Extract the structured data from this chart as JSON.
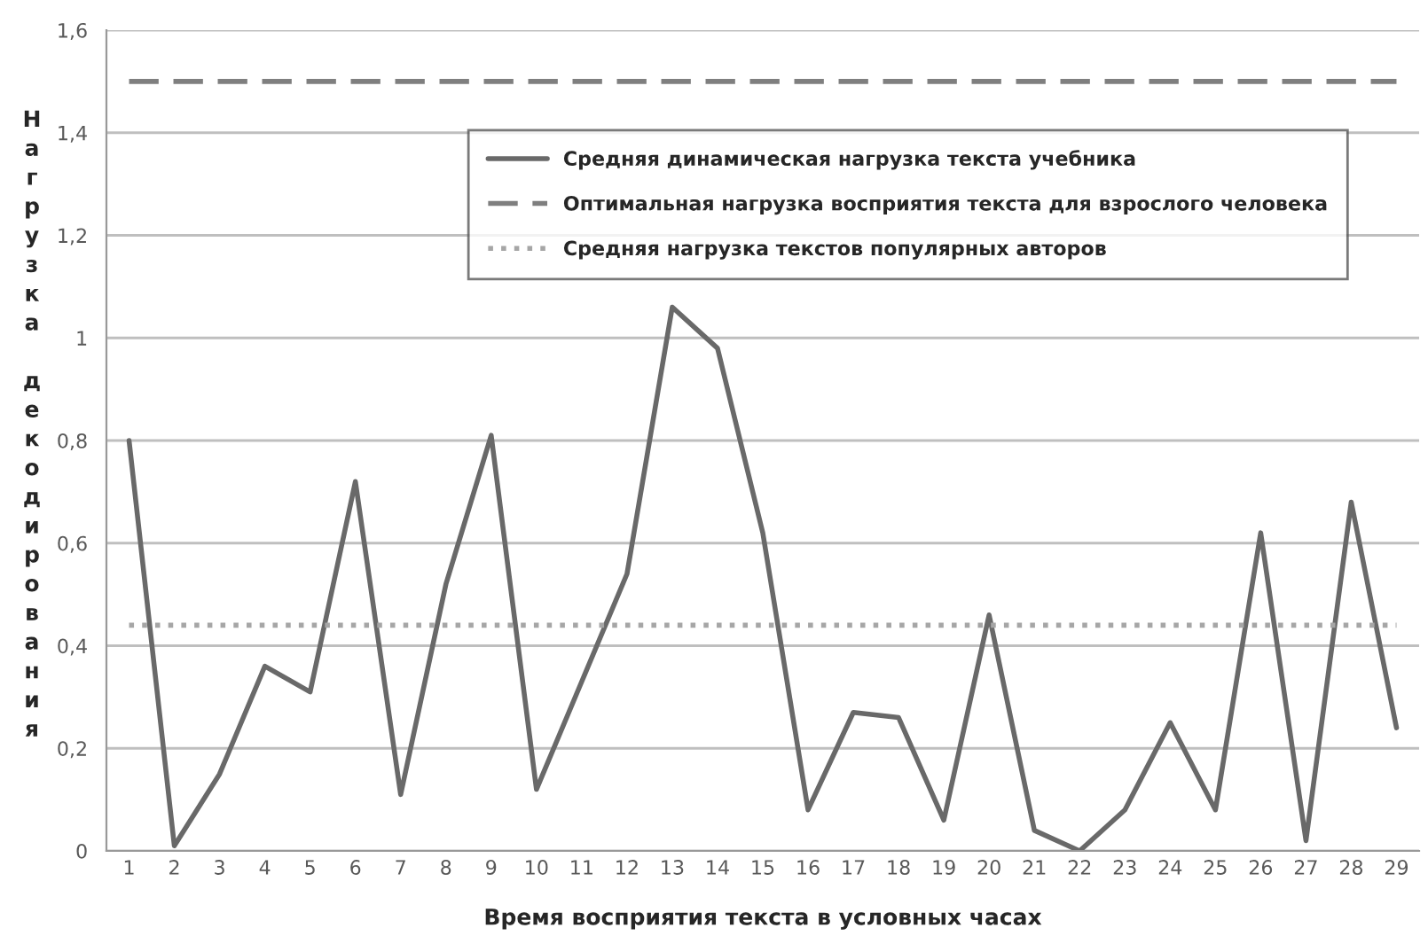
{
  "chart_data": {
    "type": "line",
    "xlabel": "Время восприятия текста в условных часах",
    "ylabel": "Нагрузка декодирования",
    "categories": [
      "1",
      "2",
      "3",
      "4",
      "5",
      "6",
      "7",
      "8",
      "9",
      "10",
      "11",
      "12",
      "13",
      "14",
      "15",
      "16",
      "17",
      "18",
      "19",
      "20",
      "21",
      "22",
      "23",
      "24",
      "25",
      "26",
      "27",
      "28",
      "29"
    ],
    "series": [
      {
        "name": "Средняя динамическая нагрузка текста учебника",
        "color": "#696969",
        "line_style": "solid",
        "values": [
          0.8,
          0.01,
          0.15,
          0.36,
          0.31,
          0.72,
          0.11,
          0.52,
          0.81,
          0.12,
          0.33,
          0.54,
          1.06,
          0.98,
          0.62,
          0.08,
          0.27,
          0.26,
          0.06,
          0.46,
          0.04,
          0.0,
          0.08,
          0.25,
          0.08,
          0.62,
          0.02,
          0.68,
          0.24
        ]
      },
      {
        "name": "Оптимальная нагрузка восприятия текста для взрослого человека",
        "color": "#7f7f7f",
        "line_style": "dashed",
        "values": [
          1.5,
          1.5,
          1.5,
          1.5,
          1.5,
          1.5,
          1.5,
          1.5,
          1.5,
          1.5,
          1.5,
          1.5,
          1.5,
          1.5,
          1.5,
          1.5,
          1.5,
          1.5,
          1.5,
          1.5,
          1.5,
          1.5,
          1.5,
          1.5,
          1.5,
          1.5,
          1.5,
          1.5,
          1.5
        ]
      },
      {
        "name": "Средняя нагрузка текстов популярных авторов",
        "color": "#a6a6a6",
        "line_style": "dotted",
        "values": [
          0.44,
          0.44,
          0.44,
          0.44,
          0.44,
          0.44,
          0.44,
          0.44,
          0.44,
          0.44,
          0.44,
          0.44,
          0.44,
          0.44,
          0.44,
          0.44,
          0.44,
          0.44,
          0.44,
          0.44,
          0.44,
          0.44,
          0.44,
          0.44,
          0.44,
          0.44,
          0.44,
          0.44,
          0.44
        ]
      }
    ],
    "ylim": [
      0,
      1.6
    ],
    "yticks": [
      0,
      {
        "value": 0.2,
        "label": "0,2"
      },
      {
        "value": 0.4,
        "label": "0,4"
      },
      {
        "value": 0.6,
        "label": "0,6"
      },
      {
        "value": 0.8,
        "label": "0,8"
      },
      1,
      {
        "value": 1.2,
        "label": "1,2"
      },
      {
        "value": 1.4,
        "label": "1,4"
      },
      {
        "value": 1.6,
        "label": "1,6"
      }
    ],
    "grid": "y",
    "legend": "top right",
    "marker": "none"
  }
}
